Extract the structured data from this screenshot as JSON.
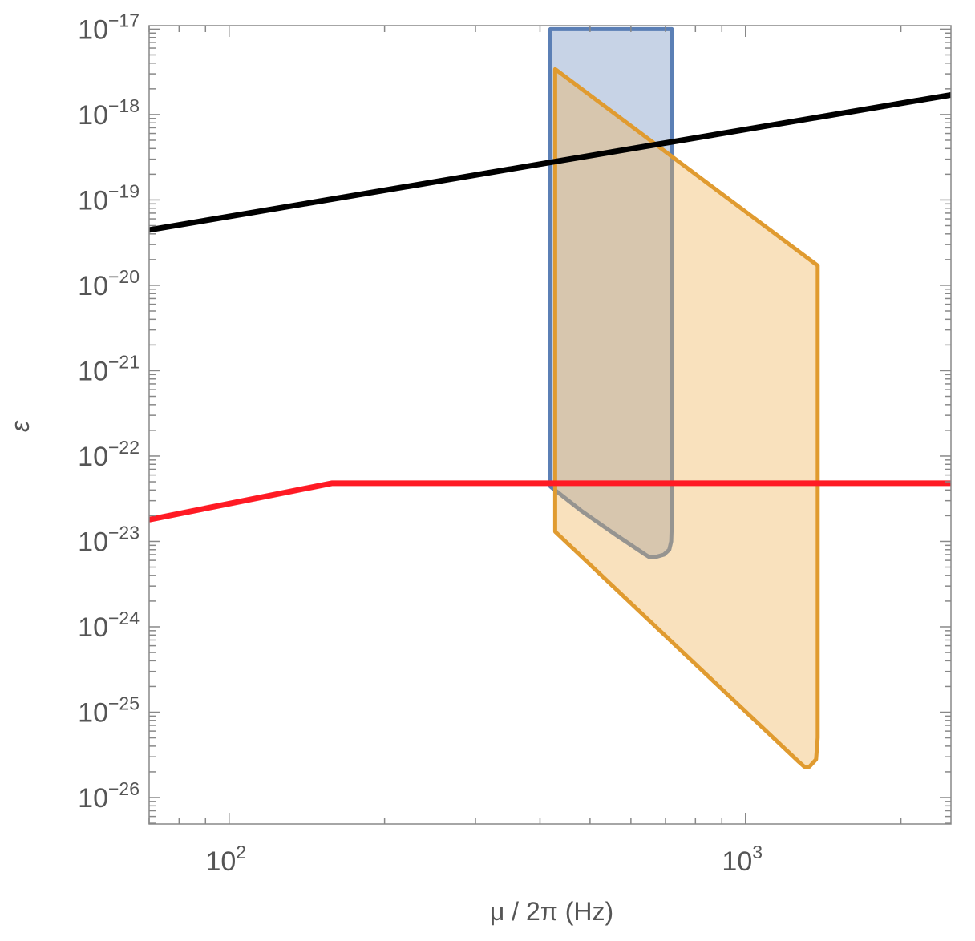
{
  "chart_data": {
    "type": "line",
    "title": "",
    "xlabel": "μ / 2π (Hz)",
    "ylabel": "ε",
    "xscale": "log",
    "yscale": "log",
    "xlim": [
      70,
      2500
    ],
    "ylim": [
      4.9e-27,
      1.1e-17
    ],
    "grid": false,
    "legend": "none",
    "x_ticks": [
      {
        "value": 100,
        "base": "10",
        "exp": "2"
      },
      {
        "value": 1000,
        "base": "10",
        "exp": "3"
      }
    ],
    "y_ticks": [
      {
        "value": 1e-17,
        "base": "10",
        "exp": "−17"
      },
      {
        "value": 1e-18,
        "base": "10",
        "exp": "−18"
      },
      {
        "value": 1e-19,
        "base": "10",
        "exp": "−19"
      },
      {
        "value": 1e-20,
        "base": "10",
        "exp": "−20"
      },
      {
        "value": 1e-21,
        "base": "10",
        "exp": "−21"
      },
      {
        "value": 1e-22,
        "base": "10",
        "exp": "−22"
      },
      {
        "value": 1e-23,
        "base": "10",
        "exp": "−23"
      },
      {
        "value": 1e-24,
        "base": "10",
        "exp": "−24"
      },
      {
        "value": 1e-25,
        "base": "10",
        "exp": "−25"
      },
      {
        "value": 1e-26,
        "base": "10",
        "exp": "−26"
      }
    ],
    "series": [
      {
        "kind": "region",
        "stroke": "#5b7fb5",
        "fill": "#c7d3e6",
        "x": [
          419,
          720,
          720,
          718,
          712,
          695,
          672,
          650,
          640,
          560,
          480,
          419,
          419
        ],
        "y": [
          1e-17,
          1e-17,
          1.7e-23,
          1e-23,
          8e-24,
          7e-24,
          6.6e-24,
          6.6e-24,
          7e-24,
          1.2e-23,
          2.3e-23,
          4.4e-23,
          1e-17
        ]
      },
      {
        "kind": "region",
        "stroke": "#e09b30",
        "fill": "rgba(240,180,90,0.40)",
        "x": [
          428,
          1380,
          1380,
          1370,
          1330,
          1300,
          1270,
          428,
          428
        ],
        "y": [
          3.4e-18,
          1.7e-20,
          5e-26,
          2.8e-26,
          2.3e-26,
          2.3e-26,
          2.6e-26,
          1.3e-23,
          3.4e-18
        ]
      },
      {
        "kind": "line",
        "stroke": "#000000",
        "x": [
          70,
          2500
        ],
        "y": [
          4.45e-20,
          1.7e-18
        ]
      },
      {
        "kind": "line",
        "stroke": "#ff1a24",
        "x": [
          70,
          158,
          2500
        ],
        "y": [
          1.8e-23,
          4.8e-23,
          4.8e-23
        ]
      }
    ]
  }
}
